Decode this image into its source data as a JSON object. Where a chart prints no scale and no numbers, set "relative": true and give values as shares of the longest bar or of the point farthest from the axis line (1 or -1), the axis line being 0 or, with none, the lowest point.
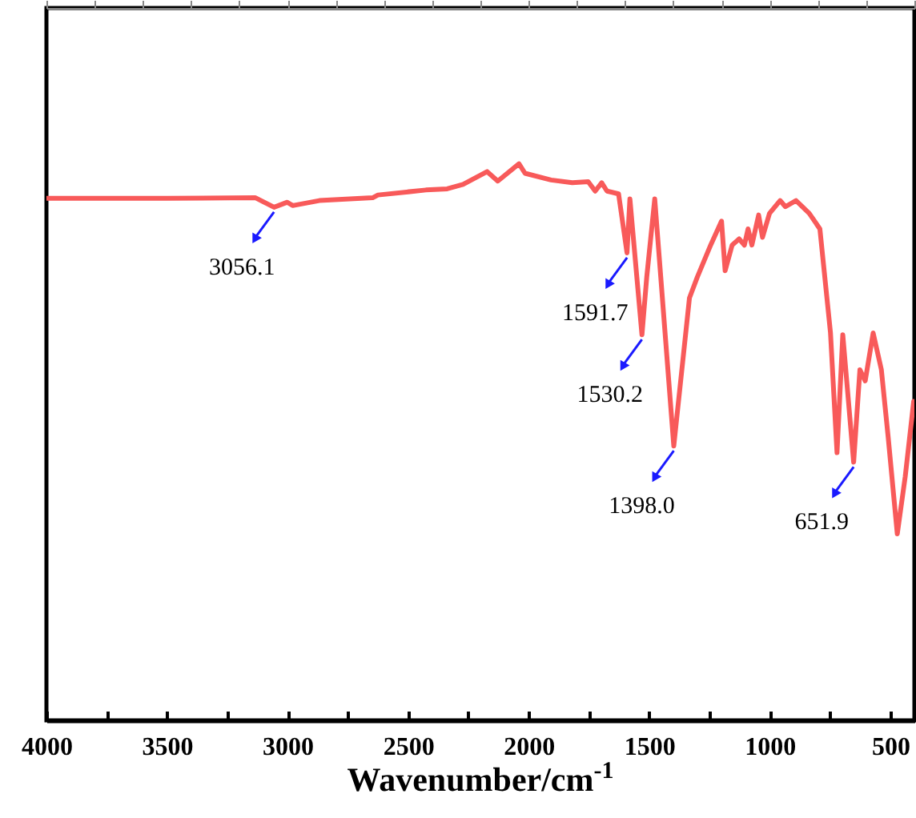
{
  "chart_data": {
    "type": "line",
    "relative": true,
    "xlabel": "Wavenumber/cm$^{-1}$",
    "xlim": [
      4000,
      400
    ],
    "xticks": [
      4000,
      {
        "value": 3750,
        "label": null
      },
      3500,
      {
        "value": 3250,
        "label": null
      },
      3000,
      {
        "value": 2750,
        "label": null
      },
      2500,
      {
        "value": 2250,
        "label": null
      },
      2000,
      {
        "value": 1750,
        "label": null
      },
      1500,
      {
        "value": 1250,
        "label": null
      },
      1000,
      {
        "value": 750,
        "label": null
      },
      500
    ],
    "x": [
      4000,
      3500,
      3133,
      3056,
      3001,
      2979,
      2868,
      2647,
      2625,
      2426,
      2338,
      2272,
      2172,
      2128,
      2040,
      2015,
      1907,
      1819,
      1753,
      1724,
      1697,
      1675,
      1627,
      1592,
      1580,
      1530,
      1510,
      1477,
      1398,
      1333,
      1300,
      1245,
      1200,
      1185,
      1156,
      1127,
      1105,
      1090,
      1074,
      1046,
      1030,
      1001,
      957,
      935,
      891,
      836,
      792,
      748,
      721,
      697,
      652,
      626,
      604,
      571,
      537,
      509,
      471,
      438,
      403
    ],
    "series": [
      {
        "color": "#f85a5a",
        "values": [
          0.938,
          0.938,
          0.939,
          0.922,
          0.931,
          0.925,
          0.934,
          0.939,
          0.944,
          0.953,
          0.955,
          0.963,
          0.986,
          0.969,
          1,
          0.983,
          0.971,
          0.966,
          0.968,
          0.951,
          0.966,
          0.951,
          0.946,
          0.84,
          0.937,
          0.693,
          0.797,
          0.937,
          0.493,
          0.759,
          0.797,
          0.854,
          0.897,
          0.808,
          0.854,
          0.865,
          0.854,
          0.883,
          0.854,
          0.908,
          0.868,
          0.911,
          0.934,
          0.923,
          0.934,
          0.911,
          0.883,
          0.696,
          0.481,
          0.693,
          0.464,
          0.63,
          0.61,
          0.696,
          0.63,
          0.51,
          0.335,
          0.438,
          0.573
        ]
      }
    ],
    "annotations": [
      {
        "text": "3056.1",
        "x": 3056.1,
        "y": 0.922
      },
      {
        "text": "1591.7",
        "x": 1591.7,
        "y": 0.84
      },
      {
        "text": "1530.2",
        "x": 1530.2,
        "y": 0.693
      },
      {
        "text": "1398.0",
        "x": 1398.0,
        "y": 0.493
      },
      {
        "text": "651.9",
        "x": 651.9,
        "y": 0.464
      }
    ]
  }
}
